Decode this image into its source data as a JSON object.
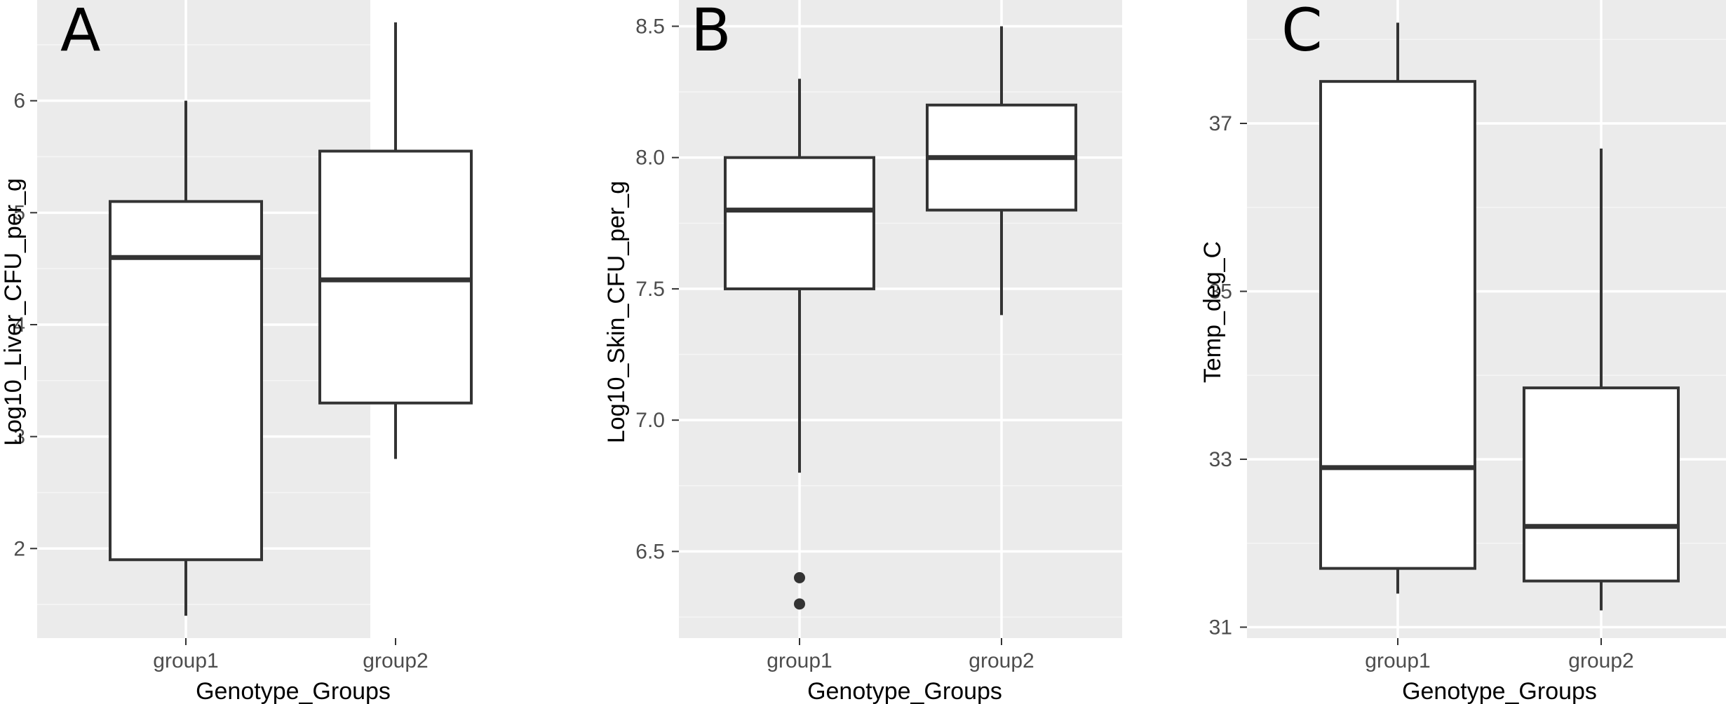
{
  "chart_data": [
    {
      "type": "box",
      "panel_label": "A",
      "xlabel": "Genotype_Groups",
      "ylabel": "Log10_Liver_CFU_per_g",
      "categories": [
        "group1",
        "group2"
      ],
      "ylim": [
        1.2,
        6.9
      ],
      "yticks": [
        2,
        3,
        4,
        5,
        6
      ],
      "ytick_labels": [
        "2",
        "3",
        "4",
        "5",
        "6"
      ],
      "minor_gridlines": [
        1.5,
        2.5,
        3.5,
        4.5,
        5.5,
        6.5
      ],
      "grid": true,
      "boxes": [
        {
          "category": "group1",
          "whisker_low": 1.4,
          "q1": 1.9,
          "median": 4.6,
          "q3": 5.1,
          "whisker_high": 6.0,
          "outliers": []
        },
        {
          "category": "group2",
          "whisker_low": 2.8,
          "q1": 3.3,
          "median": 4.4,
          "q3": 5.55,
          "whisker_high": 6.7,
          "outliers": []
        }
      ]
    },
    {
      "type": "box",
      "panel_label": "B",
      "xlabel": "Genotype_Groups",
      "ylabel": "Log10_Skin_CFU_per_g",
      "categories": [
        "group1",
        "group2"
      ],
      "ylim": [
        6.17,
        8.6
      ],
      "yticks": [
        6.5,
        7.0,
        7.5,
        8.0,
        8.5
      ],
      "ytick_labels": [
        "6.5",
        "7.0",
        "7.5",
        "8.0",
        "8.5"
      ],
      "minor_gridlines": [
        6.25,
        6.75,
        7.25,
        7.75,
        8.25
      ],
      "grid": true,
      "boxes": [
        {
          "category": "group1",
          "whisker_low": 6.8,
          "q1": 7.5,
          "median": 7.8,
          "q3": 8.0,
          "whisker_high": 8.3,
          "outliers": [
            6.4,
            6.3
          ]
        },
        {
          "category": "group2",
          "whisker_low": 7.4,
          "q1": 7.8,
          "median": 8.0,
          "q3": 8.2,
          "whisker_high": 8.5,
          "outliers": []
        }
      ]
    },
    {
      "type": "box",
      "panel_label": "C",
      "xlabel": "Genotype_Groups",
      "ylabel": "Temp_deg_C",
      "categories": [
        "group1",
        "group2"
      ],
      "ylim": [
        30.87,
        38.47
      ],
      "yticks": [
        31,
        33,
        35,
        37
      ],
      "ytick_labels": [
        "31",
        "33",
        "35",
        "37"
      ],
      "minor_gridlines": [
        32,
        34,
        36,
        38
      ],
      "grid": true,
      "boxes": [
        {
          "category": "group1",
          "whisker_low": 31.4,
          "q1": 31.7,
          "median": 32.9,
          "q3": 37.5,
          "whisker_high": 38.2,
          "outliers": []
        },
        {
          "category": "group2",
          "whisker_low": 31.2,
          "q1": 31.55,
          "median": 32.2,
          "q3": 33.85,
          "whisker_high": 36.7,
          "outliers": []
        }
      ]
    }
  ]
}
